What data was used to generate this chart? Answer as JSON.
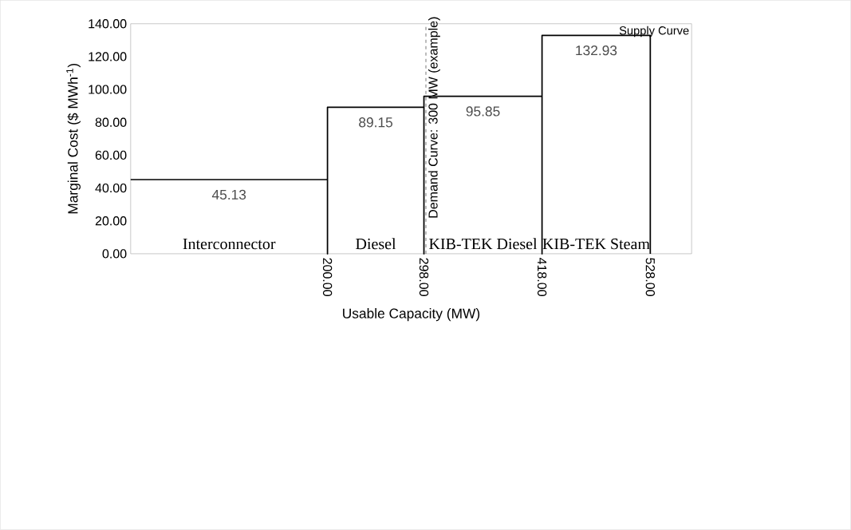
{
  "chart_data": {
    "type": "line",
    "x": [
      0,
      100,
      200,
      200,
      200,
      249,
      298,
      298,
      298,
      358,
      418,
      418,
      418,
      473,
      528,
      528
    ],
    "values": [
      45.13,
      45.13,
      45.13,
      0,
      89.15,
      89.15,
      89.15,
      0,
      95.85,
      95.85,
      95.85,
      0,
      132.93,
      132.93,
      132.93,
      0
    ],
    "value_labels": [
      null,
      "45.13",
      null,
      null,
      null,
      "89.15",
      null,
      null,
      null,
      "95.85",
      null,
      null,
      null,
      "132.93",
      null,
      null
    ],
    "color": "#000000",
    "line_style": "solid",
    "marker": "none",
    "xlabel": "Usable Capacity (MW)",
    "ylabel": "Marginal Cost ($ MWh$^{-1}$)",
    "xlim": [
      0,
      570
    ],
    "ylim": [
      0,
      140
    ],
    "xticks": [
      {
        "value": 200,
        "label": "200.00"
      },
      {
        "value": 298,
        "label": "298.00"
      },
      {
        "value": 418,
        "label": "418.00"
      },
      {
        "value": 528,
        "label": "528.00"
      }
    ],
    "yticks": [
      {
        "value": 0,
        "label": "0.00"
      },
      {
        "value": 20,
        "label": "20.00"
      },
      {
        "value": 40,
        "label": "40.00"
      },
      {
        "value": 60,
        "label": "60.00"
      },
      {
        "value": 80,
        "label": "80.00"
      },
      {
        "value": 100,
        "label": "100.00"
      },
      {
        "value": 120,
        "label": "120.00"
      },
      {
        "value": 140,
        "label": "140.00"
      }
    ],
    "ref_lines": [
      {
        "axis": "x",
        "value": 300,
        "label": "Demand Curve: 300 MW (example)",
        "line_style": "dashed"
      }
    ],
    "annotations": [
      "Interconnector",
      "Diesel",
      "KIB-TEK Diesel",
      "KIB-TEK Steam",
      "Supply Curve"
    ]
  }
}
